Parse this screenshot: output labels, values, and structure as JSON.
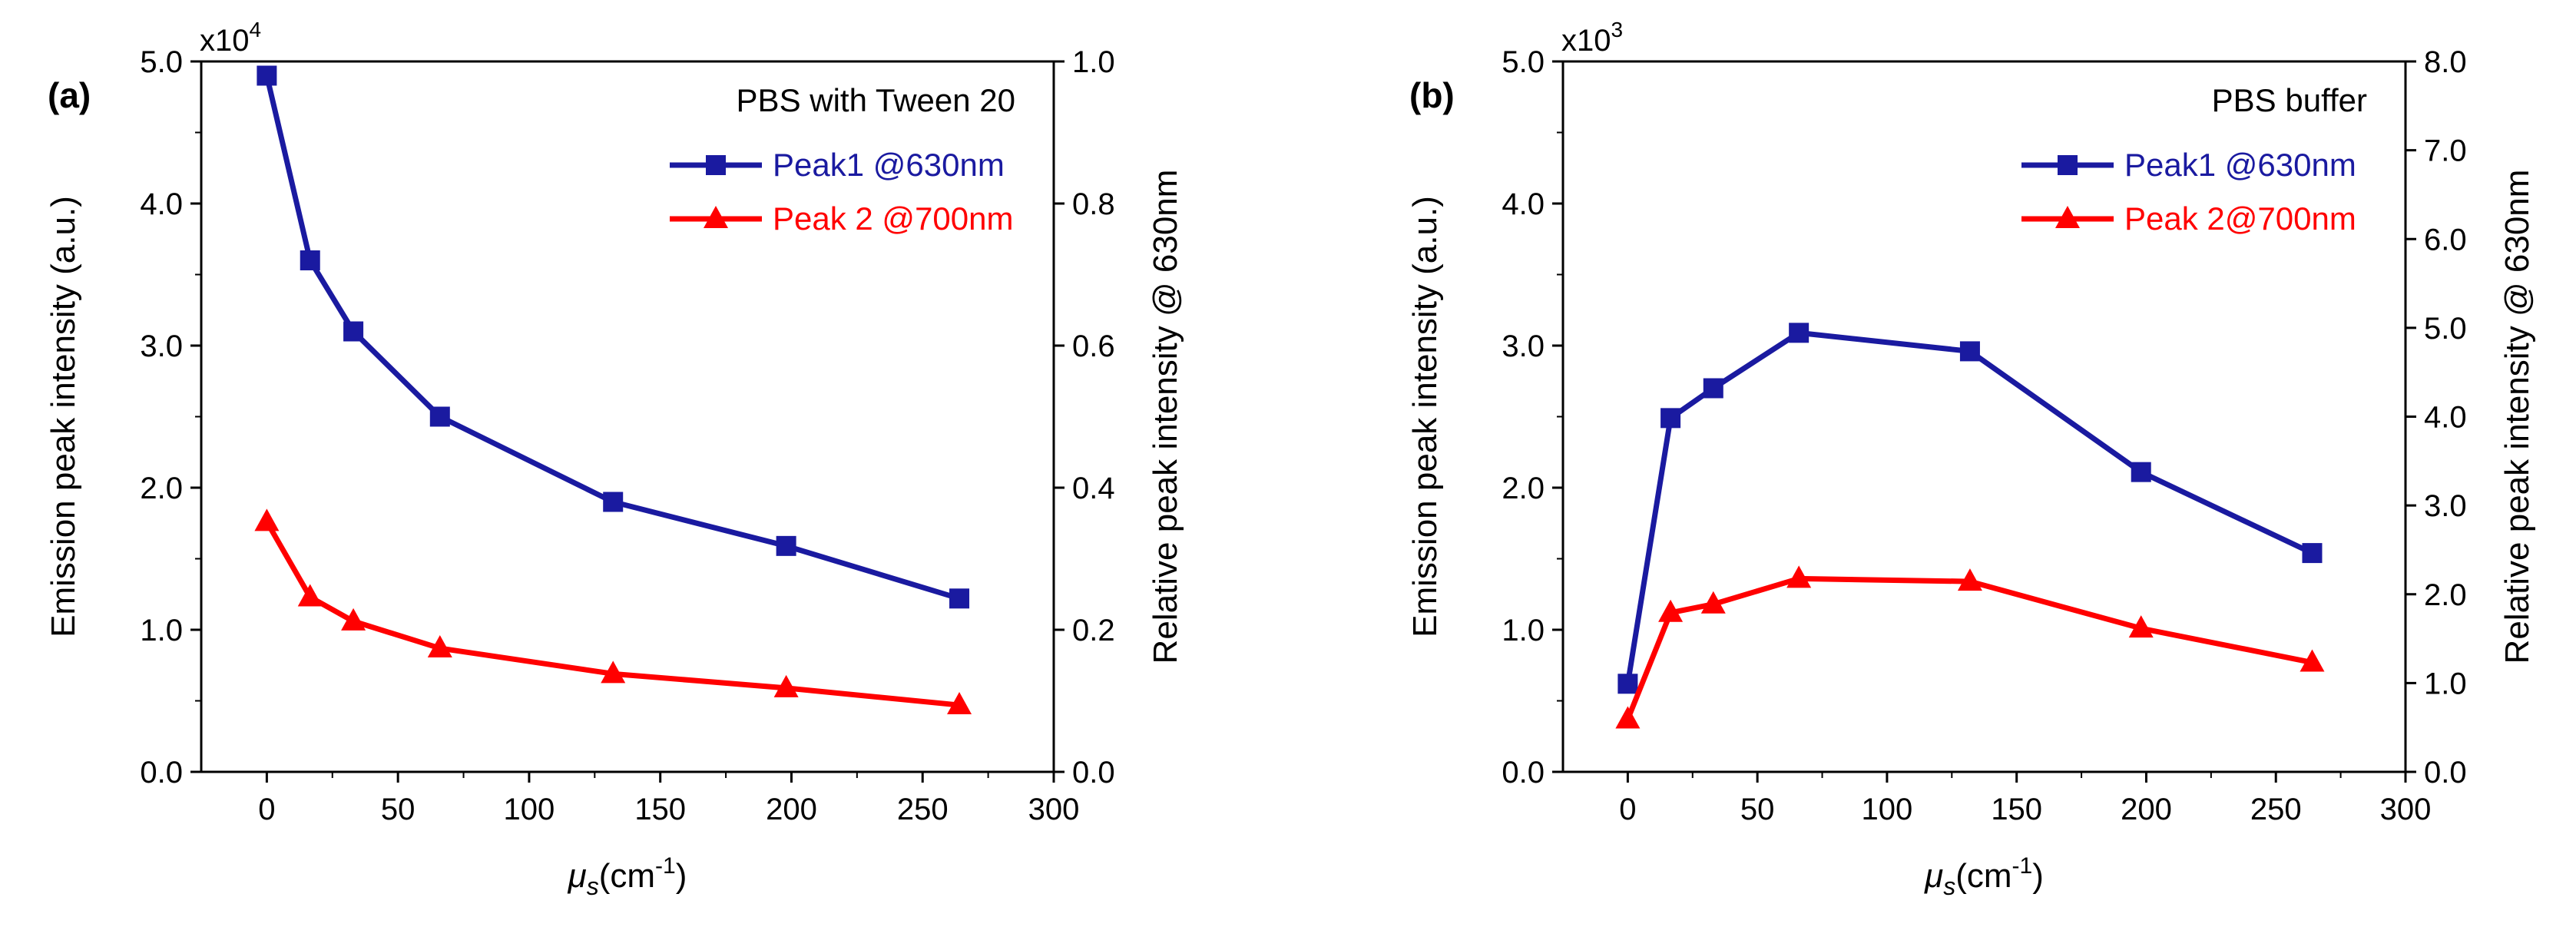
{
  "chart_data": [
    {
      "type": "line",
      "panel_label": "(a)",
      "title": "PBS with Tween 20",
      "xlabel_symbol": "μ",
      "xlabel_sub": "s",
      "xlabel_unit_pre": "(cm",
      "xlabel_unit_sup": "-1",
      "xlabel_unit_post": ")",
      "ylabel": "Emission peak intensity (a.u.)",
      "y2label": "Relative peak intensity @ 630nm",
      "multiplier_base": "x10",
      "multiplier_exp": "4",
      "xlim": [
        -25,
        300
      ],
      "ylim": [
        0,
        5.0
      ],
      "y2lim": [
        0,
        1.0
      ],
      "xticks": [
        0,
        50,
        100,
        150,
        200,
        250,
        300
      ],
      "yticks": [
        0,
        1,
        2,
        3,
        4,
        5
      ],
      "ytick_labels": [
        "0.0",
        "1.0",
        "2.0",
        "3.0",
        "4.0",
        "5.0"
      ],
      "y2ticks": [
        0,
        0.2,
        0.4,
        0.6,
        0.8,
        1.0
      ],
      "y2tick_labels": [
        "0.0",
        "0.2",
        "0.4",
        "0.6",
        "0.8",
        "1.0"
      ],
      "legend_position": "top-right",
      "series": [
        {
          "name": "Peak1 @630nm",
          "color": "#1a1aa0",
          "marker": "square",
          "x": [
            0,
            16.5,
            33,
            66,
            132,
            198,
            264
          ],
          "values": [
            4.9,
            3.6,
            3.1,
            2.5,
            1.9,
            1.59,
            1.22
          ]
        },
        {
          "name": "Peak 2 @700nm",
          "color": "#ff0000",
          "marker": "triangle",
          "x": [
            0,
            16.5,
            33,
            66,
            132,
            198,
            264
          ],
          "values": [
            1.76,
            1.23,
            1.06,
            0.87,
            0.69,
            0.59,
            0.47
          ]
        }
      ]
    },
    {
      "type": "line",
      "panel_label": "(b)",
      "title": "PBS buffer",
      "xlabel_symbol": "μ",
      "xlabel_sub": "s",
      "xlabel_unit_pre": "(cm",
      "xlabel_unit_sup": "-1",
      "xlabel_unit_post": ")",
      "ylabel": "Emission peak intensity (a.u.)",
      "y2label": "Relative peak intensity @ 630nm",
      "multiplier_base": "x10",
      "multiplier_exp": "3",
      "xlim": [
        -25,
        300
      ],
      "ylim": [
        0,
        5.0
      ],
      "y2lim": [
        0,
        8.0
      ],
      "xticks": [
        0,
        50,
        100,
        150,
        200,
        250,
        300
      ],
      "yticks": [
        0,
        1,
        2,
        3,
        4,
        5
      ],
      "ytick_labels": [
        "0.0",
        "1.0",
        "2.0",
        "3.0",
        "4.0",
        "5.0"
      ],
      "y2ticks": [
        0,
        1,
        2,
        3,
        4,
        5,
        6,
        7,
        8
      ],
      "y2tick_labels": [
        "0.0",
        "1.0",
        "2.0",
        "3.0",
        "4.0",
        "5.0",
        "6.0",
        "7.0",
        "8.0"
      ],
      "legend_position": "top-right",
      "series": [
        {
          "name": "Peak1 @630nm",
          "color": "#1a1aa0",
          "marker": "square",
          "x": [
            0,
            16.5,
            33,
            66,
            132,
            198,
            264
          ],
          "values": [
            0.62,
            2.49,
            2.7,
            3.09,
            2.96,
            2.11,
            1.54
          ]
        },
        {
          "name": "Peak 2@700nm",
          "color": "#ff0000",
          "marker": "triangle",
          "x": [
            0,
            16.5,
            33,
            66,
            132,
            198,
            264
          ],
          "values": [
            0.37,
            1.12,
            1.18,
            1.36,
            1.34,
            1.01,
            0.77
          ]
        }
      ]
    }
  ]
}
